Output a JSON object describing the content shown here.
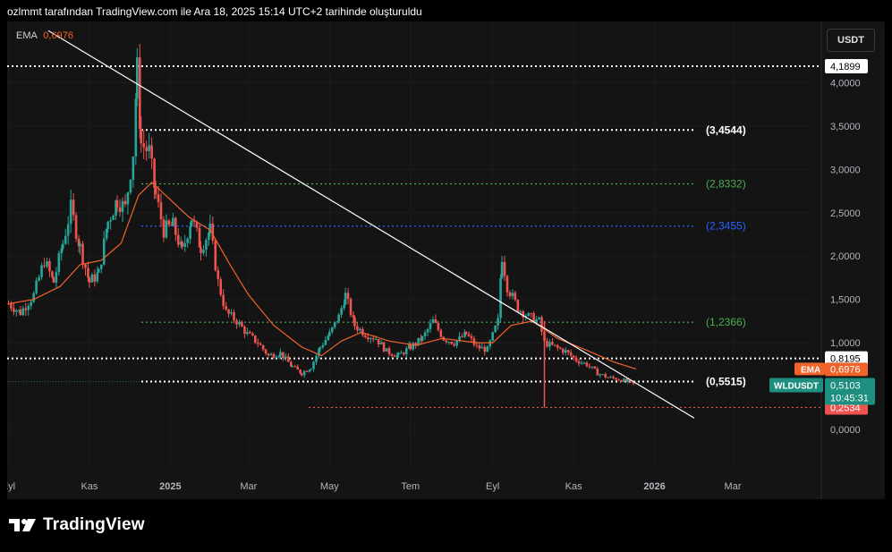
{
  "header": {
    "caption": "ozlmmt tarafından TradingView.com ile Ara 18, 2025 15:14 UTC+2 tarihinde oluşturuldu"
  },
  "footer": {
    "brand": "TradingView"
  },
  "toolbar": {
    "currency": "USDT"
  },
  "indicator": {
    "name": "EMA",
    "value": "0,6976"
  },
  "colors": {
    "background": "#000000",
    "pane": "#141414",
    "candle_up": "#26a69a",
    "candle_down": "#ef5350",
    "ema": "#f0632a",
    "trendline": "#ffffff",
    "green_level": "#4caf50",
    "blue_level": "#2962ff",
    "red_level": "#ef5350",
    "white_level": "#ffffff"
  },
  "chart_data": {
    "type": "candlestick",
    "symbol": "WLDUSDT",
    "ylim": [
      -0.2,
      4.3
    ],
    "y_ticks": [
      "4,0000",
      "3,5000",
      "3,0000",
      "2,5000",
      "2,0000",
      "1,5000",
      "1,0000",
      "0,0000"
    ],
    "y_tick_values": [
      4.0,
      3.5,
      3.0,
      2.5,
      2.0,
      1.5,
      1.0,
      0.0
    ],
    "x_ticks": [
      "Eyl",
      "Kas",
      "2025",
      "Mar",
      "May",
      "Tem",
      "Eyl",
      "Kas",
      "2026",
      "Mar"
    ],
    "x_tick_dates": [
      "2024-09-01",
      "2024-11-01",
      "2025-01-01",
      "2025-03-01",
      "2025-05-01",
      "2025-07-01",
      "2025-09-01",
      "2025-11-01",
      "2026-01-01",
      "2026-03-01"
    ],
    "x_range": [
      "2024-08-31",
      "2026-04-30"
    ],
    "horizontal_levels": [
      {
        "value": 4.1899,
        "label": "4,1899",
        "style": "dotted",
        "color": "#ffffff",
        "tag": "box-white"
      },
      {
        "value": 3.4544,
        "label": "(3,4544)",
        "style": "dotted",
        "color": "#ffffff",
        "tag": "inline"
      },
      {
        "value": 2.8332,
        "label": "(2,8332)",
        "style": "dotted",
        "color": "#4caf50",
        "tag": "inline"
      },
      {
        "value": 2.3455,
        "label": "(2,3455)",
        "style": "dotted",
        "color": "#2962ff",
        "tag": "inline"
      },
      {
        "value": 1.2366,
        "label": "(1,2366)",
        "style": "dotted",
        "color": "#4caf50",
        "tag": "inline"
      },
      {
        "value": 0.8195,
        "label": "0,8195",
        "style": "dotted",
        "color": "#ffffff",
        "tag": "box-white"
      },
      {
        "value": 0.5515,
        "label": "(0,5515)",
        "style": "dotted",
        "color": "#ffffff",
        "tag": "inline"
      },
      {
        "value": 0.2534,
        "label": "0,2534",
        "style": "dotted",
        "color": "#ef5350",
        "tag": "box-red"
      }
    ],
    "trendline": {
      "from": [
        "2024-10-01",
        4.6
      ],
      "to": [
        "2026-01-31",
        0.13
      ]
    },
    "price_tags": {
      "ema_label": "EMA",
      "ema_value": "0,6976",
      "symbol_label": "WLDUSDT",
      "last_price": "0,5103",
      "countdown": "10:45:31"
    },
    "closes": [
      {
        "d": "2024-09-01",
        "c": 1.45
      },
      {
        "d": "2024-09-10",
        "c": 1.35
      },
      {
        "d": "2024-09-20",
        "c": 1.55
      },
      {
        "d": "2024-09-28",
        "c": 1.95
      },
      {
        "d": "2024-10-05",
        "c": 1.7
      },
      {
        "d": "2024-10-12",
        "c": 2.15
      },
      {
        "d": "2024-10-18",
        "c": 2.55
      },
      {
        "d": "2024-10-25",
        "c": 2.1
      },
      {
        "d": "2024-11-01",
        "c": 1.7
      },
      {
        "d": "2024-11-08",
        "c": 1.8
      },
      {
        "d": "2024-11-15",
        "c": 2.4
      },
      {
        "d": "2024-11-22",
        "c": 2.65
      },
      {
        "d": "2024-11-28",
        "c": 2.55
      },
      {
        "d": "2024-12-04",
        "c": 3.2
      },
      {
        "d": "2024-12-07",
        "c": 4.15
      },
      {
        "d": "2024-12-10",
        "c": 3.3
      },
      {
        "d": "2024-12-16",
        "c": 3.2
      },
      {
        "d": "2024-12-21",
        "c": 2.7
      },
      {
        "d": "2024-12-27",
        "c": 2.3
      },
      {
        "d": "2025-01-03",
        "c": 2.35
      },
      {
        "d": "2025-01-10",
        "c": 2.05
      },
      {
        "d": "2025-01-17",
        "c": 2.45
      },
      {
        "d": "2025-01-24",
        "c": 2.1
      },
      {
        "d": "2025-01-31",
        "c": 2.3
      },
      {
        "d": "2025-02-06",
        "c": 1.7
      },
      {
        "d": "2025-02-12",
        "c": 1.35
      },
      {
        "d": "2025-02-20",
        "c": 1.25
      },
      {
        "d": "2025-02-28",
        "c": 1.1
      },
      {
        "d": "2025-03-08",
        "c": 1.0
      },
      {
        "d": "2025-03-16",
        "c": 0.85
      },
      {
        "d": "2025-03-25",
        "c": 0.88
      },
      {
        "d": "2025-04-03",
        "c": 0.72
      },
      {
        "d": "2025-04-10",
        "c": 0.65
      },
      {
        "d": "2025-04-17",
        "c": 0.72
      },
      {
        "d": "2025-04-24",
        "c": 0.95
      },
      {
        "d": "2025-05-01",
        "c": 1.1
      },
      {
        "d": "2025-05-08",
        "c": 1.3
      },
      {
        "d": "2025-05-13",
        "c": 1.55
      },
      {
        "d": "2025-05-20",
        "c": 1.2
      },
      {
        "d": "2025-05-28",
        "c": 1.1
      },
      {
        "d": "2025-06-05",
        "c": 1.05
      },
      {
        "d": "2025-06-13",
        "c": 0.9
      },
      {
        "d": "2025-06-22",
        "c": 0.85
      },
      {
        "d": "2025-07-01",
        "c": 0.95
      },
      {
        "d": "2025-07-10",
        "c": 1.05
      },
      {
        "d": "2025-07-18",
        "c": 1.25
      },
      {
        "d": "2025-07-26",
        "c": 1.05
      },
      {
        "d": "2025-08-03",
        "c": 1.0
      },
      {
        "d": "2025-08-12",
        "c": 1.1
      },
      {
        "d": "2025-08-20",
        "c": 0.95
      },
      {
        "d": "2025-08-28",
        "c": 0.92
      },
      {
        "d": "2025-09-05",
        "c": 1.25
      },
      {
        "d": "2025-09-08",
        "c": 2.0
      },
      {
        "d": "2025-09-12",
        "c": 1.65
      },
      {
        "d": "2025-09-20",
        "c": 1.4
      },
      {
        "d": "2025-09-28",
        "c": 1.3
      },
      {
        "d": "2025-10-06",
        "c": 1.25
      },
      {
        "d": "2025-10-10",
        "c": 1.0
      },
      {
        "d": "2025-10-18",
        "c": 0.95
      },
      {
        "d": "2025-10-26",
        "c": 0.9
      },
      {
        "d": "2025-11-03",
        "c": 0.8
      },
      {
        "d": "2025-11-11",
        "c": 0.75
      },
      {
        "d": "2025-11-19",
        "c": 0.65
      },
      {
        "d": "2025-11-27",
        "c": 0.6
      },
      {
        "d": "2025-12-05",
        "c": 0.58
      },
      {
        "d": "2025-12-12",
        "c": 0.55
      },
      {
        "d": "2025-12-18",
        "c": 0.51
      }
    ],
    "wick_events": [
      {
        "d": "2025-10-10",
        "low": 0.25
      }
    ],
    "ema": [
      {
        "d": "2024-09-01",
        "v": 1.45
      },
      {
        "d": "2024-09-20",
        "v": 1.5
      },
      {
        "d": "2024-10-10",
        "v": 1.65
      },
      {
        "d": "2024-10-25",
        "v": 1.9
      },
      {
        "d": "2024-11-10",
        "v": 1.95
      },
      {
        "d": "2024-11-25",
        "v": 2.15
      },
      {
        "d": "2024-12-08",
        "v": 2.7
      },
      {
        "d": "2024-12-18",
        "v": 2.85
      },
      {
        "d": "2025-01-01",
        "v": 2.65
      },
      {
        "d": "2025-01-15",
        "v": 2.45
      },
      {
        "d": "2025-01-31",
        "v": 2.3
      },
      {
        "d": "2025-02-15",
        "v": 1.9
      },
      {
        "d": "2025-03-01",
        "v": 1.55
      },
      {
        "d": "2025-03-20",
        "v": 1.2
      },
      {
        "d": "2025-04-10",
        "v": 0.95
      },
      {
        "d": "2025-04-25",
        "v": 0.85
      },
      {
        "d": "2025-05-10",
        "v": 1.02
      },
      {
        "d": "2025-05-25",
        "v": 1.12
      },
      {
        "d": "2025-06-15",
        "v": 1.02
      },
      {
        "d": "2025-07-05",
        "v": 0.97
      },
      {
        "d": "2025-07-25",
        "v": 1.05
      },
      {
        "d": "2025-08-20",
        "v": 1.0
      },
      {
        "d": "2025-09-01",
        "v": 1.0
      },
      {
        "d": "2025-09-15",
        "v": 1.2
      },
      {
        "d": "2025-10-01",
        "v": 1.25
      },
      {
        "d": "2025-10-20",
        "v": 1.05
      },
      {
        "d": "2025-11-10",
        "v": 0.92
      },
      {
        "d": "2025-12-01",
        "v": 0.78
      },
      {
        "d": "2025-12-18",
        "v": 0.6976
      }
    ]
  }
}
